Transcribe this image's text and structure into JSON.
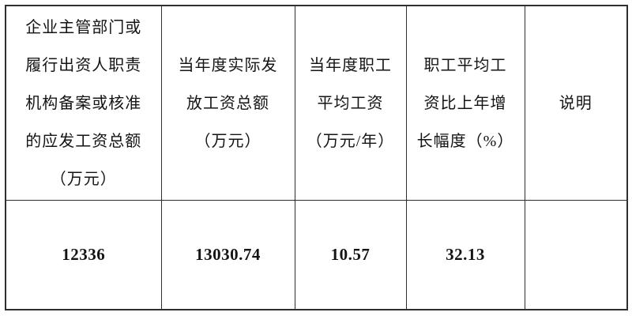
{
  "table": {
    "headers": [
      "企业主管部门或\n履行出资人职责\n机构备案或核准\n的应发工资总额\n（万元）",
      "当年度实际发\n放工资总额\n（万元）",
      "当年度职工\n平均工资\n（万元/年）",
      "职工平均工\n资比上年增\n长幅度（%）",
      "说明"
    ],
    "row": {
      "approved_total_wages": "12336",
      "actual_paid_total_wages": "13030.74",
      "average_wage": "10.57",
      "growth_rate": "32.13",
      "note": ""
    }
  },
  "colors": {
    "border": "#2f2f2f",
    "text": "#141414",
    "background": "#ffffff"
  }
}
